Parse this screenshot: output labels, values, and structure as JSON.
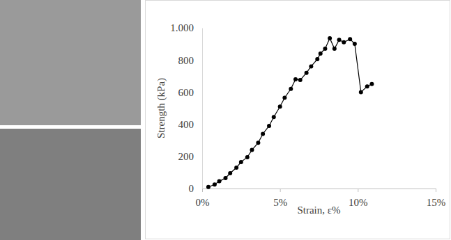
{
  "chart_data": {
    "type": "line",
    "x_label": "Strain, ε%",
    "y_label": "Strength (kPa)",
    "xlim": [
      0,
      15
    ],
    "xticks": [
      {
        "value": 0,
        "label": "0%"
      },
      {
        "value": 5,
        "label": "5%"
      },
      {
        "value": 10,
        "label": "10%"
      },
      {
        "value": 15,
        "label": "15%"
      }
    ],
    "ylim": [
      0,
      1000
    ],
    "yticks": [
      0,
      200,
      400,
      600,
      800,
      {
        "value": 1000,
        "label": "1.000"
      }
    ],
    "grid": false,
    "series": [
      {
        "color": "#000000",
        "marker": "circle",
        "line_style": "solid",
        "x": [
          0.4,
          0.8,
          1.1,
          1.5,
          1.8,
          2.2,
          2.5,
          2.9,
          3.2,
          3.6,
          3.9,
          4.3,
          4.6,
          5.0,
          5.3,
          5.7,
          6.0,
          6.3,
          6.7,
          7.0,
          7.4,
          7.6,
          7.9,
          8.2,
          8.5,
          8.8,
          9.1,
          9.5,
          9.8,
          10.2,
          10.6,
          10.9
        ],
        "values": [
          10,
          25,
          45,
          65,
          95,
          130,
          165,
          195,
          240,
          285,
          340,
          390,
          445,
          510,
          565,
          620,
          680,
          675,
          720,
          760,
          805,
          840,
          870,
          935,
          870,
          925,
          910,
          930,
          900,
          600,
          635,
          650
        ]
      }
    ]
  }
}
